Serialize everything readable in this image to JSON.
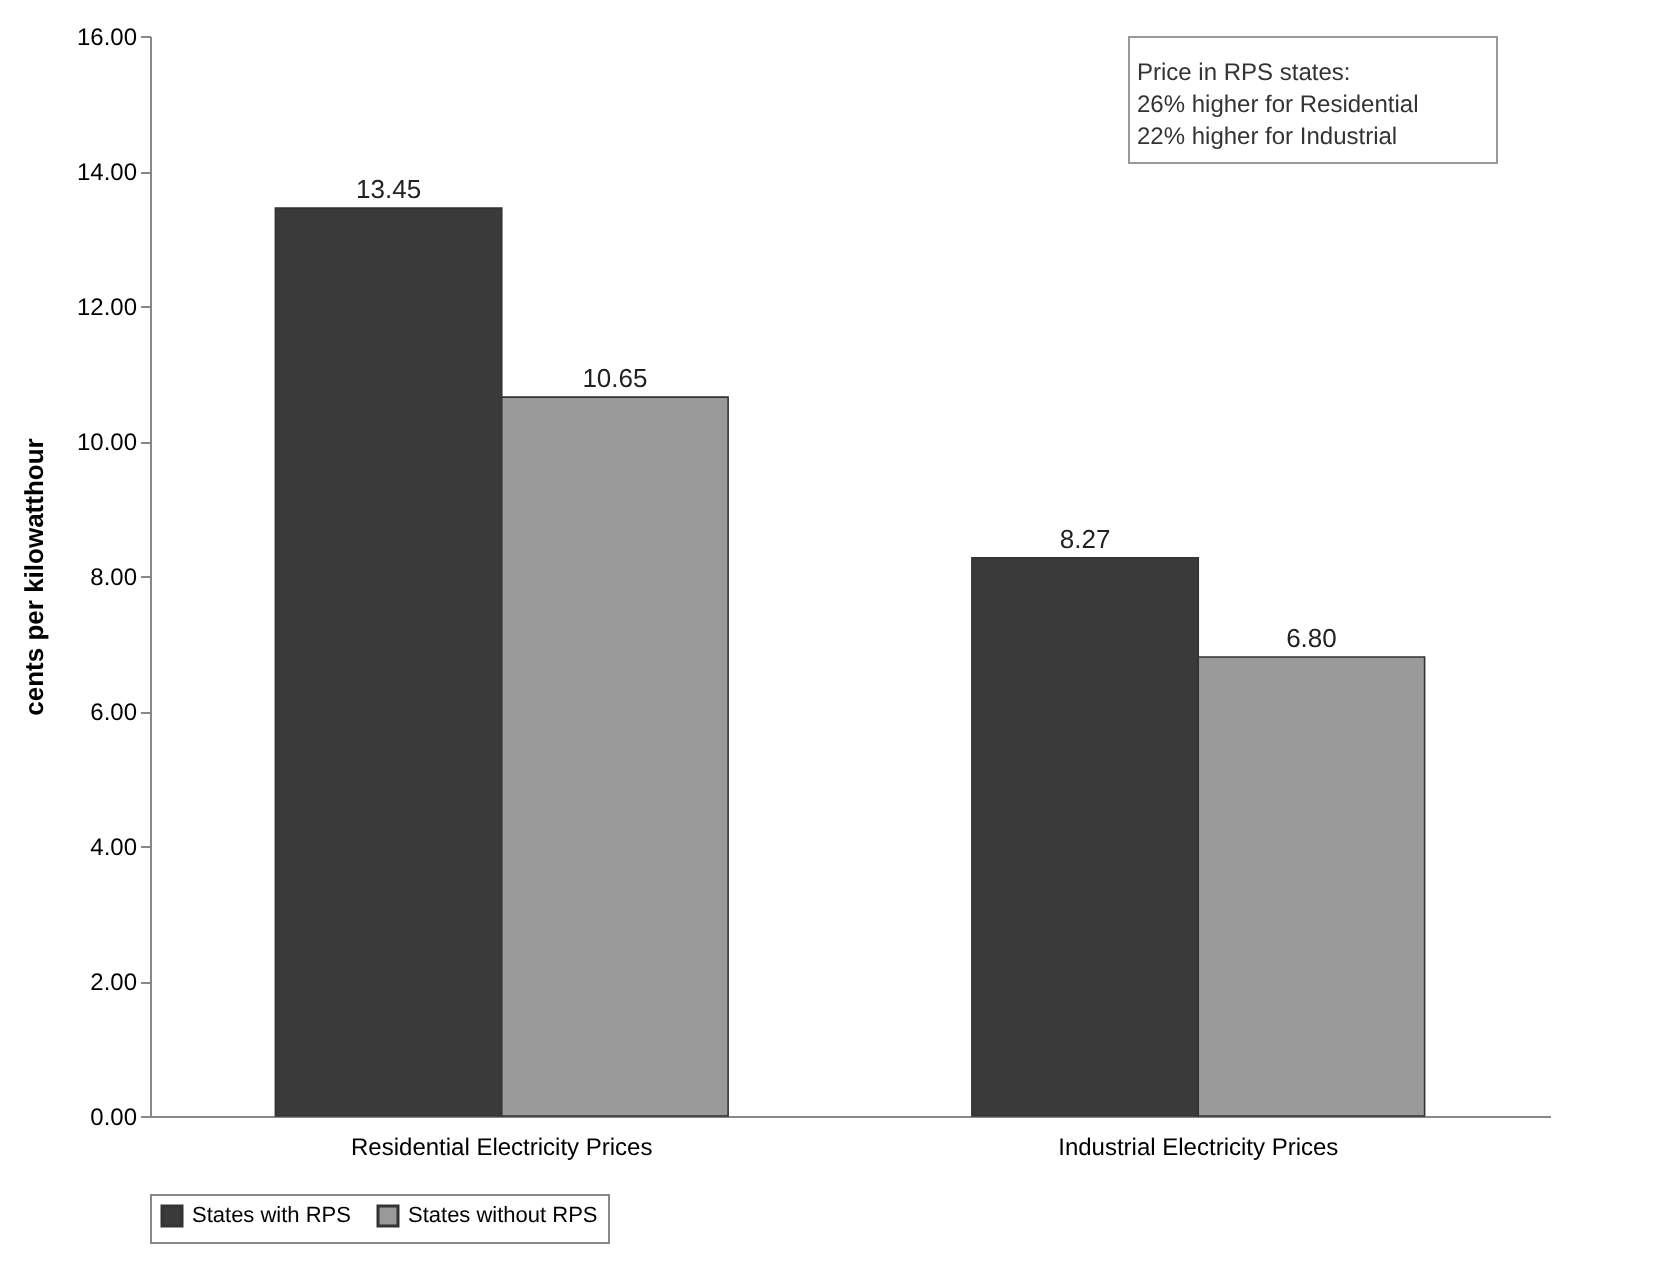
{
  "chart_data": {
    "type": "bar",
    "ylabel": "cents per kilowatthour",
    "categories": [
      "Residential Electricity Prices",
      "Industrial Electricity Prices"
    ],
    "series": [
      {
        "name": "States with RPS",
        "color": "#3a3a3a",
        "values": [
          13.45,
          8.27
        ],
        "value_labels": [
          "13.45",
          "8.27"
        ]
      },
      {
        "name": "States without RPS",
        "color": "#9a9a9a",
        "values": [
          10.65,
          6.8
        ],
        "value_labels": [
          "10.65",
          "6.80"
        ]
      }
    ],
    "ylim": [
      0,
      16
    ],
    "yticks": [
      {
        "value": 0,
        "label": "0.00"
      },
      {
        "value": 2,
        "label": "2.00"
      },
      {
        "value": 4,
        "label": "4.00"
      },
      {
        "value": 6,
        "label": "6.00"
      },
      {
        "value": 8,
        "label": "8.00"
      },
      {
        "value": 10,
        "label": "10.00"
      },
      {
        "value": 12,
        "label": "12.00"
      },
      {
        "value": 14,
        "label": "14.00"
      },
      {
        "value": 16,
        "label": "16.00"
      }
    ],
    "annotations": [
      "Price in RPS states:",
      "26% higher for Residential",
      "22% higher for Industrial"
    ],
    "legend": "bottom",
    "grid": false
  }
}
